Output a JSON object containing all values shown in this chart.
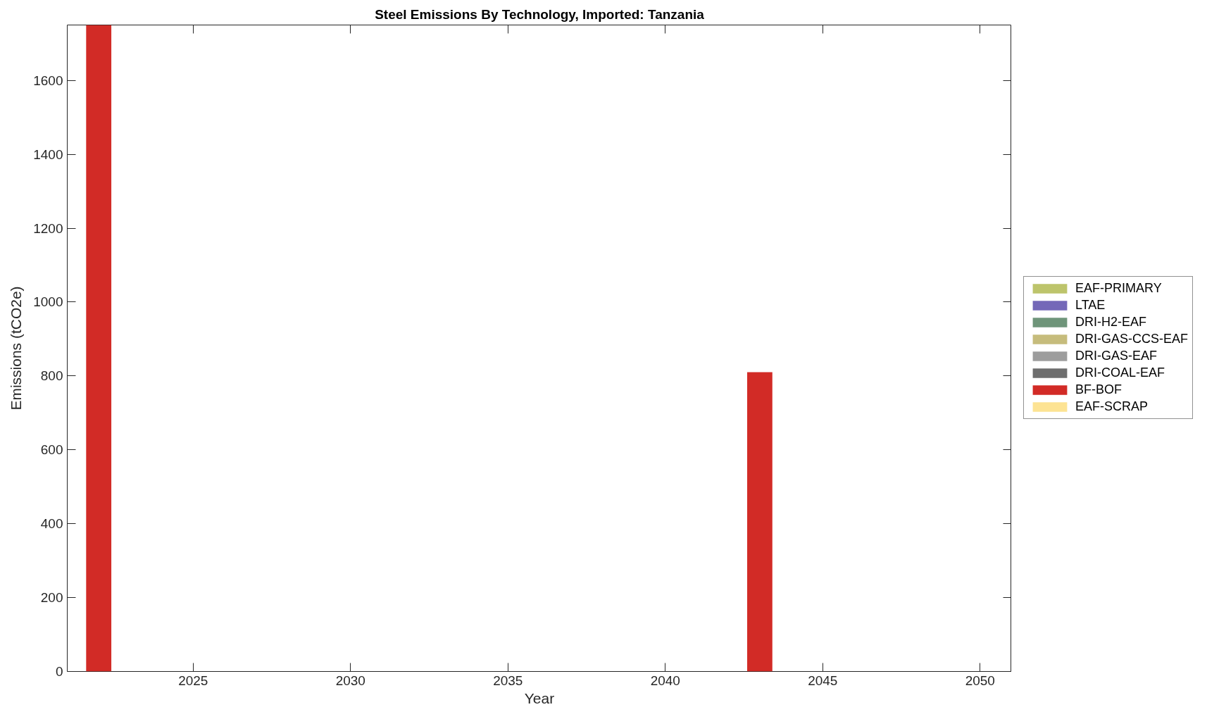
{
  "chart_data": {
    "type": "bar",
    "stacked": true,
    "title": "Steel Emissions By Technology, Imported: Tanzania",
    "xlabel": "Year",
    "ylabel": "Emissions (tCO2e)",
    "x": [
      2022,
      2023,
      2024,
      2025,
      2026,
      2027,
      2028,
      2029,
      2030,
      2031,
      2032,
      2033,
      2034,
      2035,
      2036,
      2037,
      2038,
      2039,
      2040,
      2041,
      2042,
      2043,
      2044,
      2045,
      2046,
      2047,
      2048,
      2049,
      2050
    ],
    "xlim": [
      2021,
      2051
    ],
    "xticks": [
      2025,
      2030,
      2035,
      2040,
      2045,
      2050
    ],
    "ylim": [
      0,
      1750
    ],
    "yticks": [
      0,
      200,
      400,
      600,
      800,
      1000,
      1200,
      1400,
      1600
    ],
    "legend": "right",
    "series": [
      {
        "name": "EAF-SCRAP",
        "color": "#fde393",
        "values": [
          0,
          0,
          0,
          0,
          0,
          0,
          0,
          0,
          0,
          0,
          0,
          0,
          0,
          0,
          0,
          0,
          0,
          0,
          0,
          0,
          0,
          0,
          0,
          0,
          0,
          0,
          0,
          0,
          0
        ]
      },
      {
        "name": "BF-BOF",
        "color": "#d22b26",
        "values": [
          1750,
          0,
          0,
          0,
          0,
          0,
          0,
          0,
          0,
          0,
          0,
          0,
          0,
          0,
          0,
          0,
          0,
          0,
          0,
          0,
          0,
          810,
          0,
          0,
          0,
          0,
          0,
          0,
          0
        ]
      },
      {
        "name": "DRI-COAL-EAF",
        "color": "#6e6e6e",
        "values": [
          0,
          0,
          0,
          0,
          0,
          0,
          0,
          0,
          0,
          0,
          0,
          0,
          0,
          0,
          0,
          0,
          0,
          0,
          0,
          0,
          0,
          0,
          0,
          0,
          0,
          0,
          0,
          0,
          0
        ]
      },
      {
        "name": "DRI-GAS-EAF",
        "color": "#9d9d9d",
        "values": [
          0,
          0,
          0,
          0,
          0,
          0,
          0,
          0,
          0,
          0,
          0,
          0,
          0,
          0,
          0,
          0,
          0,
          0,
          0,
          0,
          0,
          0,
          0,
          0,
          0,
          0,
          0,
          0,
          0
        ]
      },
      {
        "name": "DRI-GAS-CCS-EAF",
        "color": "#c6bc7c",
        "values": [
          0,
          0,
          0,
          0,
          0,
          0,
          0,
          0,
          0,
          0,
          0,
          0,
          0,
          0,
          0,
          0,
          0,
          0,
          0,
          0,
          0,
          0,
          0,
          0,
          0,
          0,
          0,
          0,
          0
        ]
      },
      {
        "name": "DRI-H2-EAF",
        "color": "#6f957a",
        "values": [
          0,
          0,
          0,
          0,
          0,
          0,
          0,
          0,
          0,
          0,
          0,
          0,
          0,
          0,
          0,
          0,
          0,
          0,
          0,
          0,
          0,
          0,
          0,
          0,
          0,
          0,
          0,
          0,
          0
        ]
      },
      {
        "name": "LTAE",
        "color": "#7468b8",
        "values": [
          0,
          0,
          0,
          0,
          0,
          0,
          0,
          0,
          0,
          0,
          0,
          0,
          0,
          0,
          0,
          0,
          0,
          0,
          0,
          0,
          0,
          0,
          0,
          0,
          0,
          0,
          0,
          0,
          0
        ]
      },
      {
        "name": "EAF-PRIMARY",
        "color": "#bdc46b",
        "values": [
          0,
          0,
          0,
          0,
          0,
          0,
          0,
          0,
          0,
          0,
          0,
          0,
          0,
          0,
          0,
          0,
          0,
          0,
          0,
          0,
          0,
          0,
          0,
          0,
          0,
          0,
          0,
          0,
          0
        ]
      }
    ]
  }
}
